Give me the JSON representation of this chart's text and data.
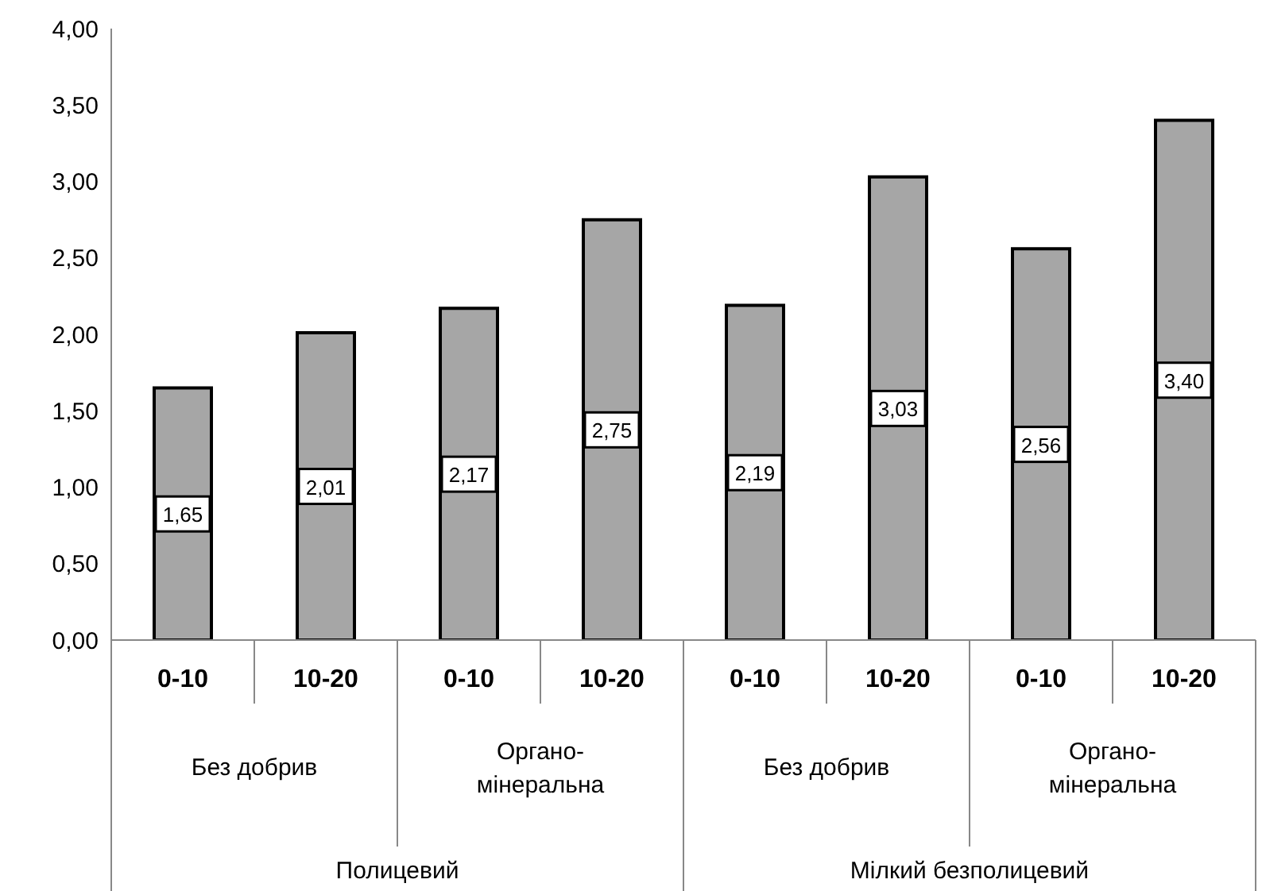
{
  "chart_data": {
    "type": "bar",
    "categories": [
      "0-10",
      "10-20",
      "0-10",
      "10-20",
      "0-10",
      "10-20",
      "0-10",
      "10-20"
    ],
    "values": [
      1.65,
      2.01,
      2.17,
      2.75,
      2.19,
      3.03,
      2.56,
      3.4
    ],
    "color": "#a6a6a6",
    "ylim": [
      0,
      4
    ],
    "yticks": [
      {
        "value": 0,
        "label": "0,00"
      },
      {
        "value": 0.5,
        "label": "0,50"
      },
      {
        "value": 1,
        "label": "1,00"
      },
      {
        "value": 1.5,
        "label": "1,50"
      },
      {
        "value": 2,
        "label": "2,00"
      },
      {
        "value": 2.5,
        "label": "2,50"
      },
      {
        "value": 3,
        "label": "3,00"
      },
      {
        "value": 3.5,
        "label": "3,50"
      },
      {
        "value": 4,
        "label": "4,00"
      }
    ],
    "value_labels": [
      "1,65",
      "2,01",
      "2,17",
      "2,75",
      "2,19",
      "3,03",
      "2,56",
      "3,40"
    ],
    "annotations": [
      "Без добрив",
      "Органо-мінеральна",
      "Без добрив",
      "Органо-мінеральна",
      "Полицевий",
      "Мілкий безполицевий"
    ],
    "grid": false,
    "legend": false
  }
}
